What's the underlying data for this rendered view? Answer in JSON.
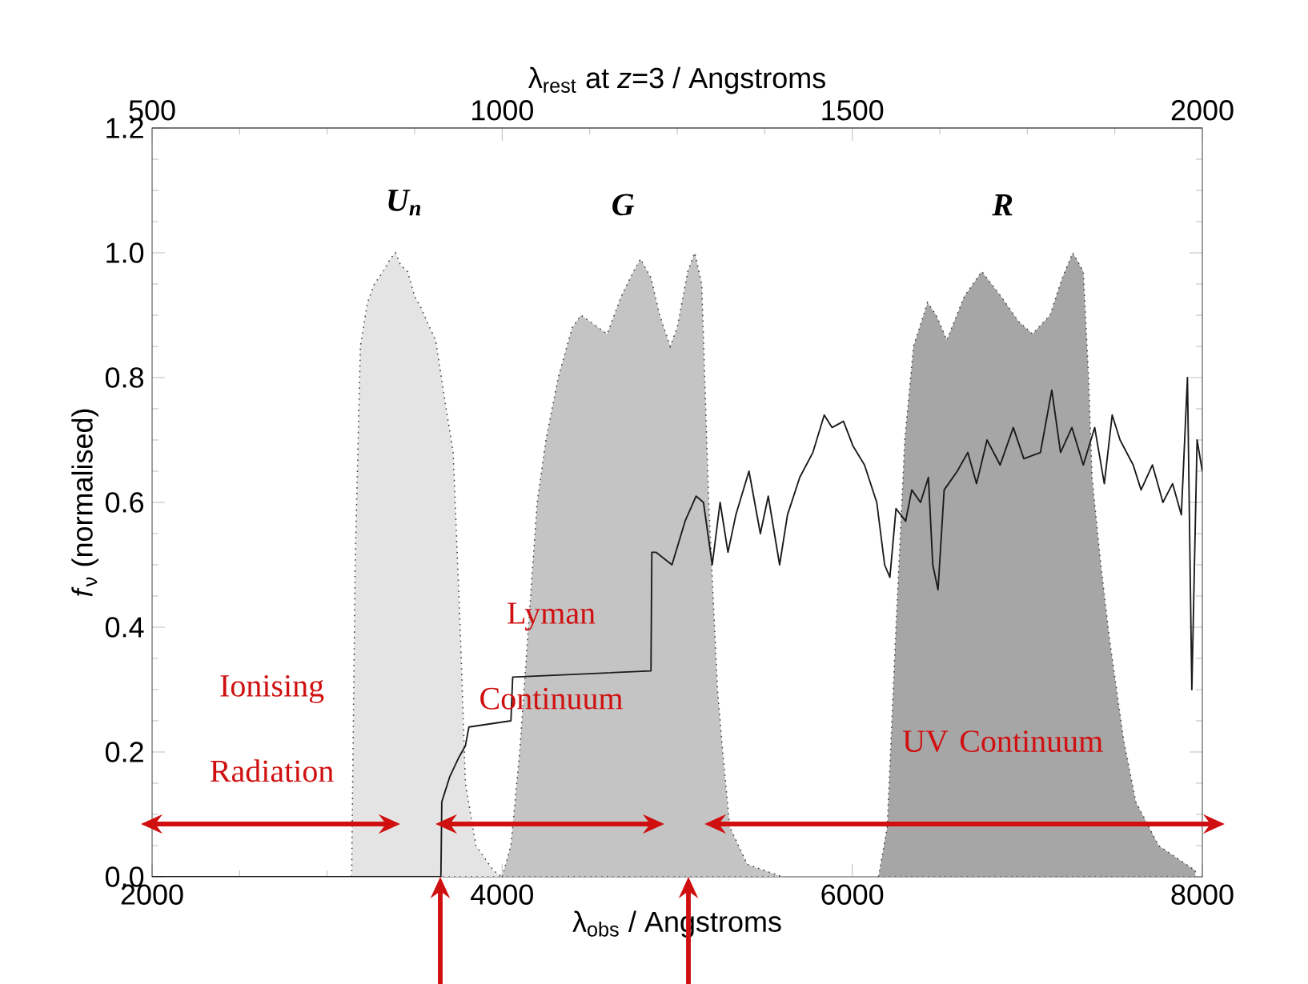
{
  "chart_data": {
    "type": "area",
    "xlabel": "λ$_{obs}$ / Angstroms",
    "x2label": "λ$_{rest}$ at *z*=3 / Angstroms",
    "ylabel": "*f*$_{ν}$ (normalised)",
    "xlim": [
      2000,
      8000
    ],
    "xticks": [
      2000,
      4000,
      6000,
      8000
    ],
    "x2lim": [
      500,
      2000
    ],
    "x2ticks": [
      500,
      1000,
      1500,
      2000
    ],
    "ylim": [
      0,
      1.2
    ],
    "yticks": [
      {
        "value": 0,
        "label": "0.0"
      },
      {
        "value": 0.2,
        "label": "0.2"
      },
      {
        "value": 0.4,
        "label": "0.4"
      },
      {
        "value": 0.6,
        "label": "0.6"
      },
      {
        "value": 0.8,
        "label": "0.8"
      },
      {
        "value": 1.0,
        "label": "1.0"
      },
      {
        "value": 1.2,
        "label": "1.2"
      }
    ],
    "grid": false,
    "marker": "none",
    "series": [
      {
        "name": "U$_{n}$",
        "color": "#e4e4e4",
        "line_style": "dotted",
        "x": [
          3140,
          3160,
          3190,
          3230,
          3270,
          3320,
          3360,
          3390,
          3420,
          3460,
          3500,
          3540,
          3570,
          3620,
          3680,
          3720,
          3760,
          3790,
          3850,
          3950,
          4000
        ],
        "values": [
          0,
          0.5,
          0.85,
          0.92,
          0.95,
          0.97,
          0.99,
          1.0,
          0.98,
          0.97,
          0.93,
          0.91,
          0.89,
          0.86,
          0.75,
          0.68,
          0.4,
          0.15,
          0.05,
          0.01,
          0
        ]
      },
      {
        "name": "G",
        "color": "#c4c4c4",
        "line_style": "dotted",
        "x": [
          4000,
          4050,
          4100,
          4150,
          4200,
          4250,
          4320,
          4400,
          4450,
          4500,
          4600,
          4680,
          4750,
          4790,
          4850,
          4900,
          4960,
          5000,
          5060,
          5100,
          5140,
          5180,
          5230,
          5260,
          5300,
          5400,
          5600
        ],
        "values": [
          0,
          0.05,
          0.2,
          0.4,
          0.6,
          0.7,
          0.8,
          0.88,
          0.9,
          0.89,
          0.87,
          0.93,
          0.97,
          0.99,
          0.96,
          0.9,
          0.85,
          0.88,
          0.97,
          1.0,
          0.95,
          0.6,
          0.3,
          0.2,
          0.08,
          0.02,
          0
        ]
      },
      {
        "name": "R",
        "color": "#a6a6a6",
        "line_style": "dotted",
        "x": [
          6150,
          6200,
          6250,
          6300,
          6350,
          6430,
          6480,
          6540,
          6640,
          6740,
          6850,
          6950,
          7030,
          7130,
          7200,
          7260,
          7320,
          7350,
          7370,
          7420,
          7470,
          7550,
          7620,
          7750,
          7960
        ],
        "values": [
          0,
          0.08,
          0.4,
          0.7,
          0.85,
          0.92,
          0.9,
          0.86,
          0.93,
          0.97,
          0.93,
          0.89,
          0.87,
          0.9,
          0.96,
          1.0,
          0.97,
          0.8,
          0.64,
          0.5,
          0.38,
          0.22,
          0.12,
          0.05,
          0.01
        ]
      },
      {
        "type": "line",
        "color": "#1a1a1a",
        "line_style": "solid",
        "x": [
          2000,
          3650,
          3655,
          3700,
          3750,
          3790,
          3810,
          4050,
          4060,
          4850,
          4855,
          4880,
          4970,
          5045,
          5108,
          5150,
          5200,
          5245,
          5290,
          5335,
          5410,
          5475,
          5520,
          5585,
          5630,
          5700,
          5775,
          5840,
          5885,
          5950,
          6005,
          6070,
          6140,
          6185,
          6215,
          6250,
          6305,
          6340,
          6390,
          6435,
          6460,
          6490,
          6525,
          6600,
          6660,
          6710,
          6770,
          6845,
          6920,
          6980,
          7075,
          7140,
          7190,
          7255,
          7320,
          7385,
          7440,
          7485,
          7530,
          7605,
          7650,
          7715,
          7775,
          7830,
          7880,
          7915,
          7940,
          7970,
          8000
        ],
        "values": [
          0,
          0,
          0.12,
          0.16,
          0.19,
          0.21,
          0.24,
          0.25,
          0.32,
          0.33,
          0.52,
          0.52,
          0.5,
          0.57,
          0.61,
          0.6,
          0.5,
          0.6,
          0.52,
          0.58,
          0.65,
          0.55,
          0.61,
          0.5,
          0.58,
          0.64,
          0.68,
          0.74,
          0.72,
          0.73,
          0.69,
          0.66,
          0.6,
          0.5,
          0.48,
          0.59,
          0.57,
          0.62,
          0.6,
          0.64,
          0.5,
          0.46,
          0.62,
          0.65,
          0.68,
          0.63,
          0.7,
          0.66,
          0.72,
          0.67,
          0.68,
          0.78,
          0.68,
          0.72,
          0.66,
          0.72,
          0.63,
          0.74,
          0.7,
          0.66,
          0.62,
          0.66,
          0.6,
          0.63,
          0.58,
          0.8,
          0.3,
          0.7,
          0.65
        ]
      }
    ],
    "annotations": [
      "Ionising Radiation",
      "Lyman Continuum",
      "UV Continuum"
    ]
  }
}
